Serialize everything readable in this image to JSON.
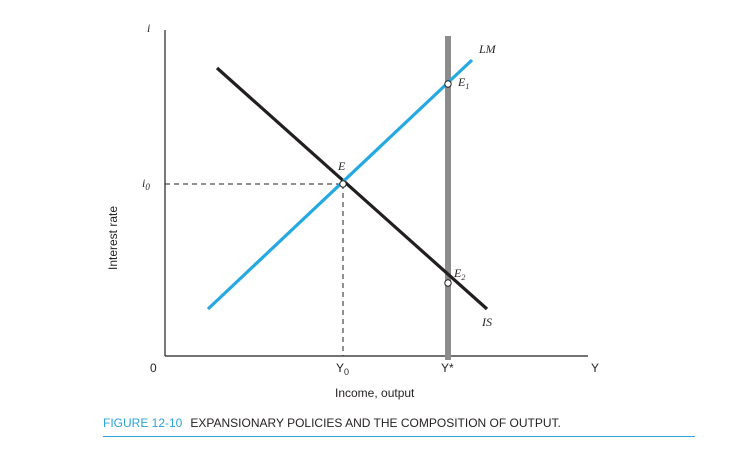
{
  "axes": {
    "y_symbol": "i",
    "y_label": "Interest rate",
    "x_symbol": "Y",
    "x_label": "Income, output",
    "origin": "0"
  },
  "ticks": {
    "i0": "i",
    "i0_sub": "0",
    "Y0": "Y",
    "Y0_sub": "0",
    "Ystar": "Y*"
  },
  "curves": {
    "LM": "LM",
    "IS": "IS"
  },
  "points": {
    "E": "E",
    "E1": "E",
    "E1_sub": "1",
    "E2": "E",
    "E2_sub": "2"
  },
  "colors": {
    "lm_line": "#25a9e0",
    "is_line": "#231f20",
    "full_employment_line": "#8c8c8c",
    "caption_accent": "#2aa4d8"
  },
  "caption": {
    "number": "FIGURE 12-10",
    "title": "EXPANSIONARY POLICIES AND THE COMPOSITION OF OUTPUT."
  }
}
